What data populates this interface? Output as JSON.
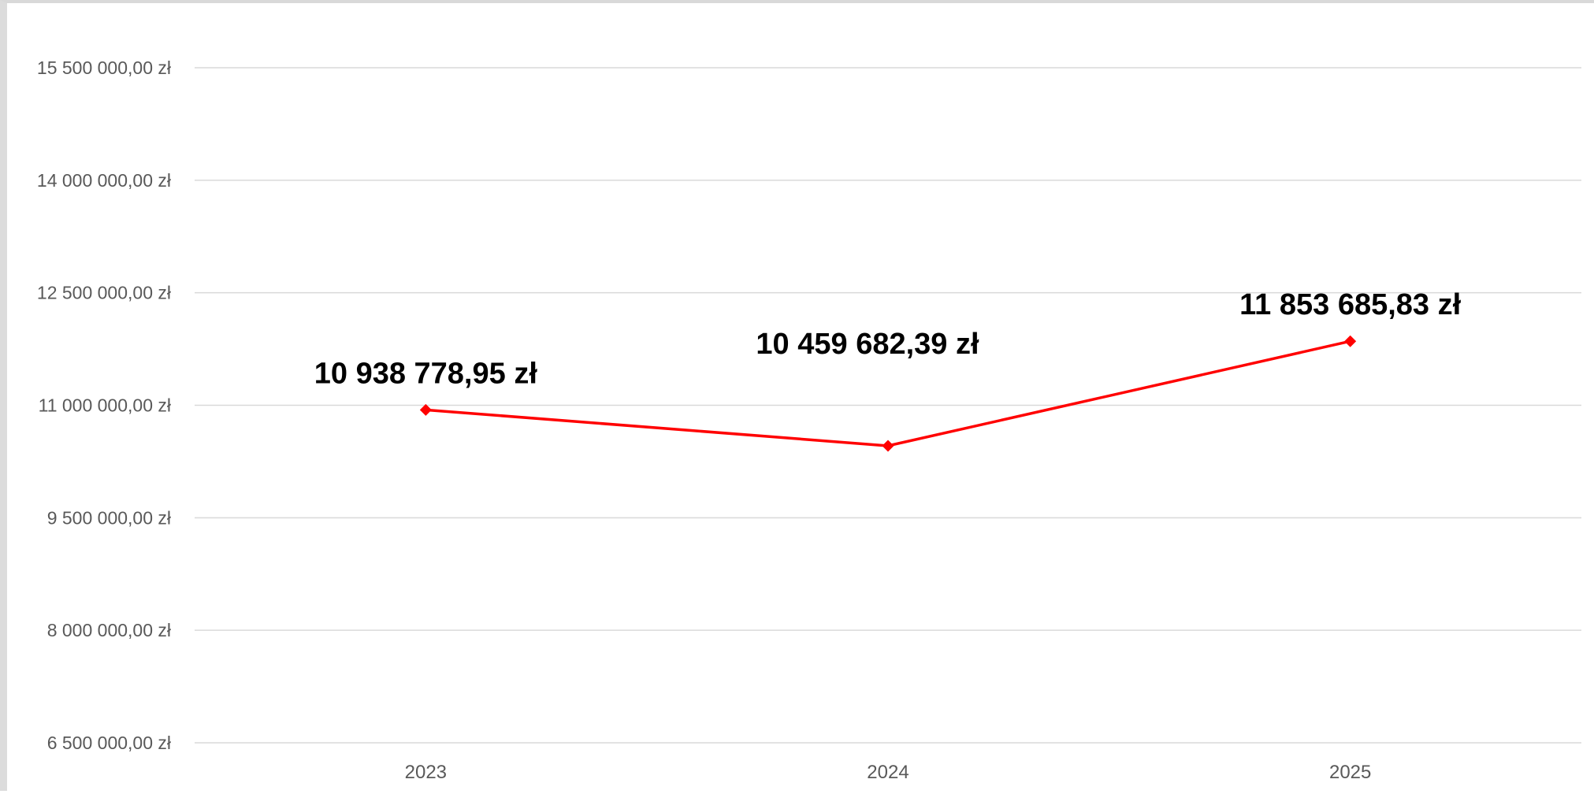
{
  "chart_data": {
    "type": "line",
    "title": "",
    "xlabel": "",
    "ylabel": "",
    "categories": [
      "2023",
      "2024",
      "2025"
    ],
    "series": [
      {
        "values": [
          10938778.95,
          10459682.39,
          11853685.83
        ],
        "color": "#ff0000",
        "marker": "diamond",
        "data_labels": [
          "10 938 778,95 zł",
          "10 459 682,39 zł",
          "11 853 685,83 zł"
        ]
      }
    ],
    "ylim": [
      6500000,
      15500000
    ],
    "y_ticks": [
      6500000,
      8000000,
      9500000,
      11000000,
      12500000,
      14000000,
      15500000
    ],
    "y_tick_labels": [
      "6 500 000,00 zł",
      "8 000 000,00 zł",
      "9 500 000,00 zł",
      "11 000 000,00 zł",
      "12 500 000,00 zł",
      "14 000 000,00 zł",
      "15 500 000,00 zł"
    ],
    "grid": true,
    "legend": "none"
  }
}
